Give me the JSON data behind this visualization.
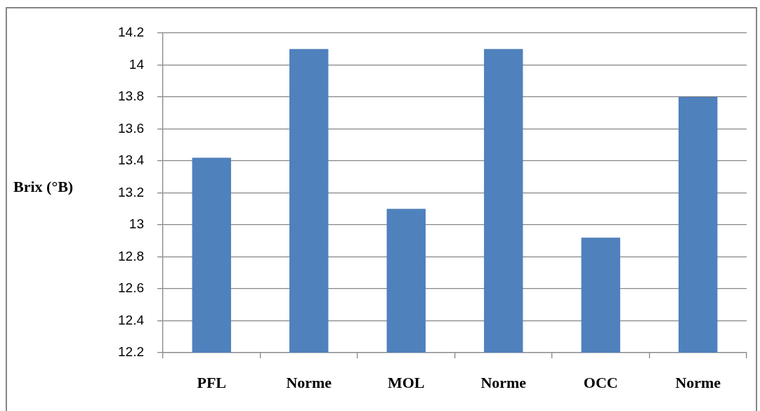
{
  "chart_data": {
    "type": "bar",
    "ylabel": "Brix (°B)",
    "categories": [
      "PFL",
      "Norme",
      "MOL",
      "Norme",
      "OCC",
      "Norme"
    ],
    "values": [
      13.42,
      14.1,
      13.1,
      14.1,
      12.92,
      13.8
    ],
    "color": "#4f81bd",
    "ylim": [
      12.2,
      14.2
    ],
    "yticks": [
      12.2,
      12.4,
      12.6,
      12.8,
      13,
      13.2,
      13.4,
      13.6,
      13.8,
      14,
      14.2
    ],
    "grid": "y",
    "legend": false
  }
}
